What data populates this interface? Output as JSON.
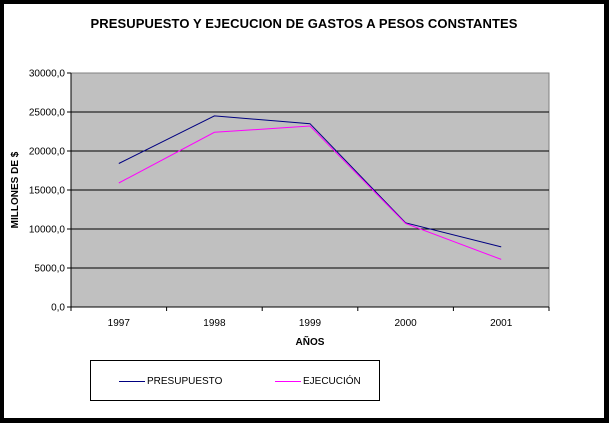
{
  "chart_data": {
    "type": "line",
    "title": "PRESUPUESTO Y EJECUCION DE GASTOS A PESOS CONSTANTES",
    "xlabel": "AÑOS",
    "ylabel": "MILLONES DE $",
    "categories": [
      "1997",
      "1998",
      "1999",
      "2000",
      "2001"
    ],
    "yticks": [
      "0,0",
      "5000,0",
      "10000,0",
      "15000,0",
      "20000,0",
      "25000,0",
      "30000,0"
    ],
    "ylim": [
      0,
      30000
    ],
    "grid": true,
    "legend_position": "bottom-left",
    "plot_background": "#c0c0c0",
    "series": [
      {
        "name": "PRESUPUESTO",
        "color": "#000080",
        "values": [
          18400,
          24500,
          23500,
          10800,
          7700
        ]
      },
      {
        "name": "EJECUCIÓN",
        "color": "#ff00ff",
        "values": [
          15900,
          22400,
          23200,
          10700,
          6100
        ]
      }
    ]
  }
}
